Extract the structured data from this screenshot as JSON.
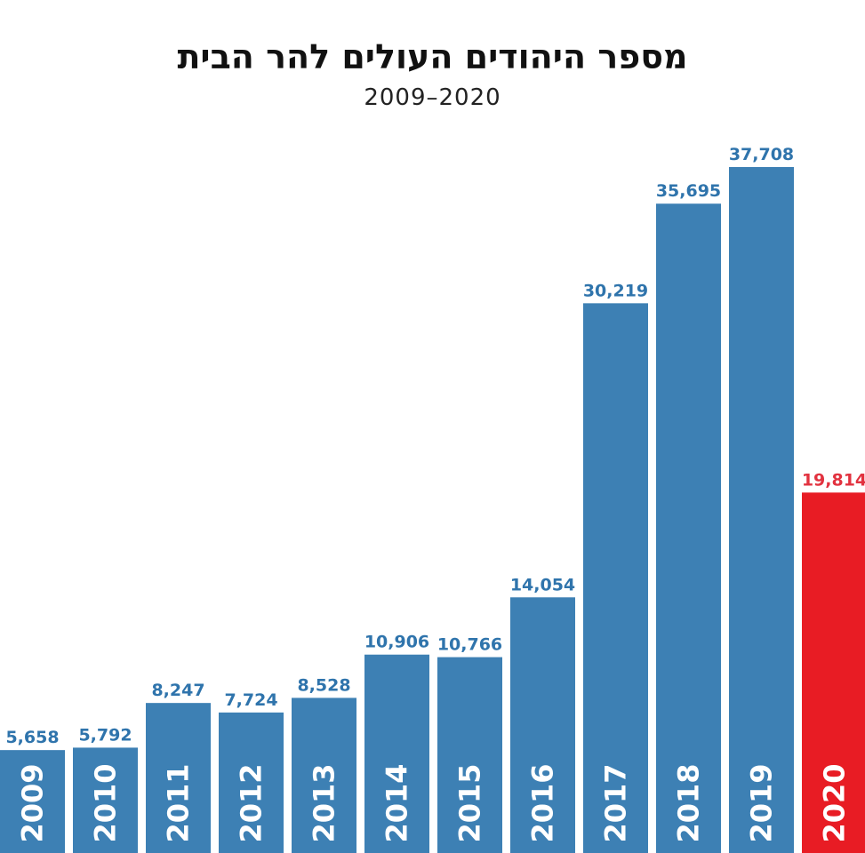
{
  "chart_data": {
    "type": "bar",
    "title": "מספר היהודים העולים להר הבית",
    "subtitle": "2009–2020",
    "xlabel": "",
    "ylabel": "",
    "ylim": [
      0,
      40000
    ],
    "grid": false,
    "categories": [
      "2009",
      "2010",
      "2011",
      "2012",
      "2013",
      "2014",
      "2015",
      "2016",
      "2017",
      "2018",
      "2019",
      "2020"
    ],
    "values": [
      5658,
      5792,
      8247,
      7724,
      8528,
      10906,
      10766,
      14054,
      30219,
      35695,
      37708,
      19814
    ],
    "value_labels": [
      "5,658",
      "5,792",
      "8,247",
      "7,724",
      "8,528",
      "10,906",
      "10,766",
      "14,054",
      "30,219",
      "35,695",
      "37,708",
      "19,814"
    ],
    "highlight_category": "2020",
    "colors": {
      "bar": "#3d80b4",
      "highlight": "#e81c24",
      "label": "#2f74ac",
      "highlight_label": "#e2323f"
    }
  }
}
